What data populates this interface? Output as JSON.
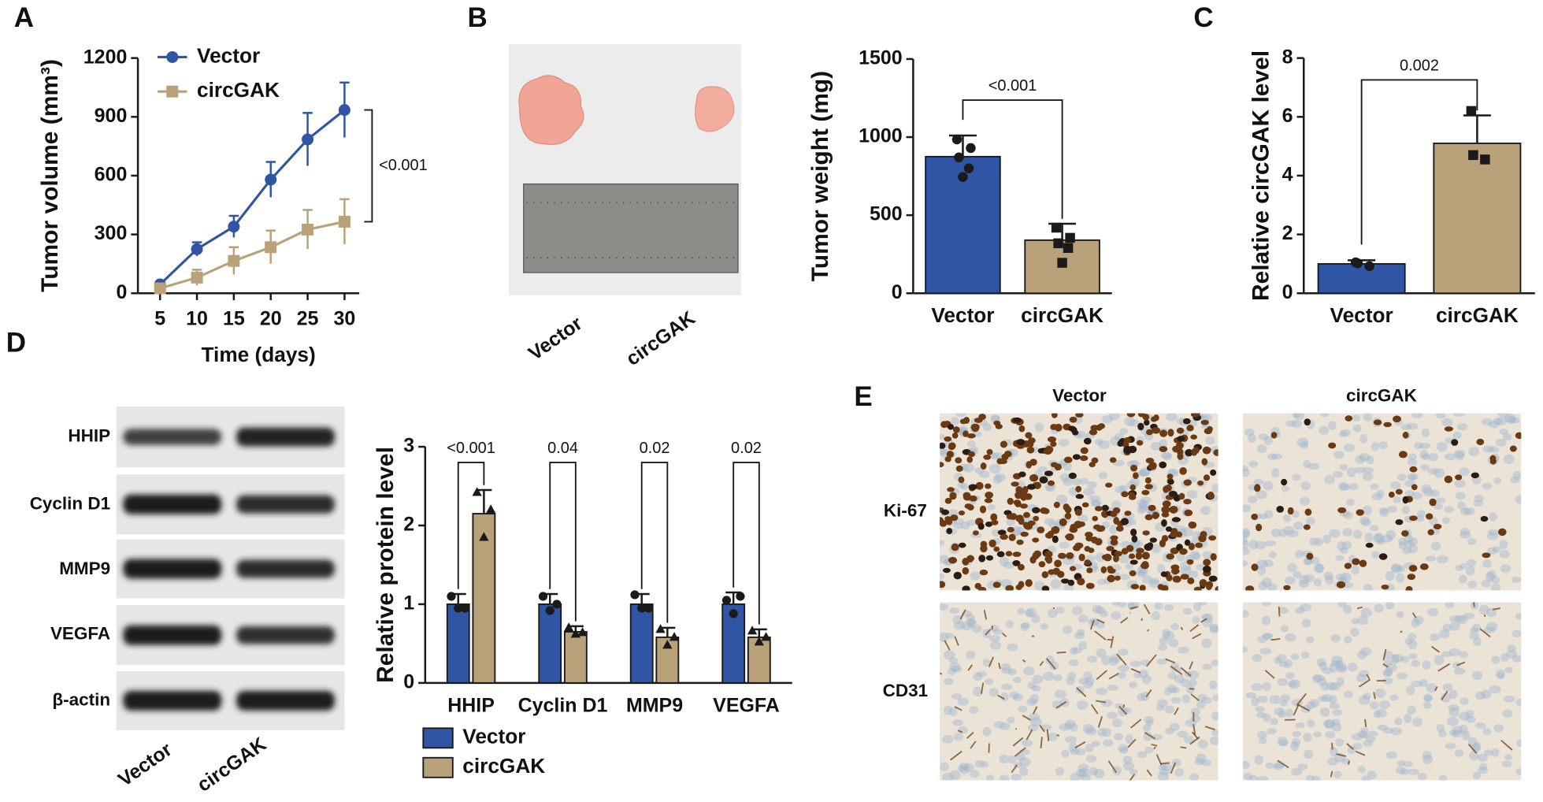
{
  "panel_labels": [
    "A",
    "B",
    "C",
    "D",
    "E"
  ],
  "chart_data": [
    {
      "type": "line",
      "y_label": "Tumor volume (mm³)",
      "x_label": "Time (days)",
      "x": [
        5,
        10,
        15,
        20,
        25,
        30
      ],
      "xlim": [
        2,
        32
      ],
      "xticks": [
        5,
        10,
        15,
        20,
        25,
        30
      ],
      "ylim": [
        0,
        1200
      ],
      "yticks": [
        0,
        300,
        600,
        900,
        1200
      ],
      "legend": "upper left",
      "series": [
        {
          "name": "Vector",
          "color": "#2f55a4",
          "marker": "circle",
          "values": [
            45,
            225,
            340,
            580,
            785,
            935
          ],
          "errors": [
            10,
            35,
            55,
            90,
            135,
            140
          ]
        },
        {
          "name": "circGAK",
          "color": "#b9a27a",
          "marker": "square",
          "values": [
            25,
            80,
            165,
            235,
            325,
            365
          ],
          "errors": [
            10,
            40,
            70,
            85,
            100,
            115
          ]
        }
      ],
      "annotations": [
        "<0.001"
      ]
    },
    {
      "type": "bar",
      "y_label": "Tumor weight (mg)",
      "categories": [
        "Vector",
        "circGAK"
      ],
      "values": [
        875,
        340
      ],
      "errors": [
        135,
        105
      ],
      "points": [
        [
          985,
          930,
          870,
          800,
          745
        ],
        [
          420,
          355,
          320,
          290,
          195
        ]
      ],
      "colors": [
        "#2f55a4",
        "#b9a27a"
      ],
      "markers": [
        "circle",
        "square"
      ],
      "ylim": [
        0,
        1500
      ],
      "yticks": [
        0,
        500,
        1000,
        1500
      ],
      "annotations": [
        "<0.001"
      ]
    },
    {
      "type": "bar",
      "y_label": "Relative circGAK level",
      "categories": [
        "Vector",
        "circGAK"
      ],
      "values": [
        1,
        5.1
      ],
      "errors": [
        0.12,
        0.95
      ],
      "points": [
        [
          1.05,
          0.92,
          1.02
        ],
        [
          6.2,
          4.55,
          4.7
        ]
      ],
      "colors": [
        "#2f55a4",
        "#b9a27a"
      ],
      "markers": [
        "circle",
        "square"
      ],
      "ylim": [
        0,
        8
      ],
      "yticks": [
        0,
        2,
        4,
        6,
        8
      ],
      "annotations": [
        "0.002"
      ]
    },
    {
      "type": "grouped_bar",
      "y_label": "Relative protein level",
      "categories": [
        "HHIP",
        "Cyclin D1",
        "MMP9",
        "VEGFA"
      ],
      "ylim": [
        0,
        3
      ],
      "yticks": [
        0,
        1,
        2,
        3
      ],
      "legend": "bottom",
      "series": [
        {
          "name": "Vector",
          "color": "#2f55a4",
          "marker": "circle",
          "values": [
            1,
            1,
            1,
            1
          ],
          "errors": [
            0.13,
            0.13,
            0.13,
            0.15
          ],
          "points": [
            [
              1.1,
              0.95,
              0.95
            ],
            [
              1.1,
              1.0,
              0.92
            ],
            [
              1.12,
              0.95,
              0.95
            ],
            [
              1.05,
              1.1,
              0.88
            ]
          ]
        },
        {
          "name": "circGAK",
          "color": "#b9a27a",
          "marker": "triangle",
          "values": [
            2.15,
            0.65,
            0.58,
            0.58
          ],
          "errors": [
            0.3,
            0.07,
            0.12,
            0.1
          ],
          "points": [
            [
              2.42,
              2.2,
              1.85
            ],
            [
              0.7,
              0.64,
              0.62
            ],
            [
              0.68,
              0.58,
              0.48
            ],
            [
              0.66,
              0.58,
              0.52
            ]
          ]
        }
      ],
      "annotations": [
        "<0.001",
        "0.04",
        "0.02",
        "0.02"
      ]
    }
  ],
  "tumor_photo": {
    "labels": [
      "Vector",
      "circGAK"
    ]
  },
  "western_blot": {
    "rows": [
      "HHIP",
      "Cyclin D1",
      "MMP9",
      "VEGFA",
      "β-actin"
    ],
    "columns": [
      "Vector",
      "circGAK"
    ]
  },
  "ihc": {
    "columns": [
      "Vector",
      "circGAK"
    ],
    "rows": [
      "Ki-67",
      "CD31"
    ]
  }
}
